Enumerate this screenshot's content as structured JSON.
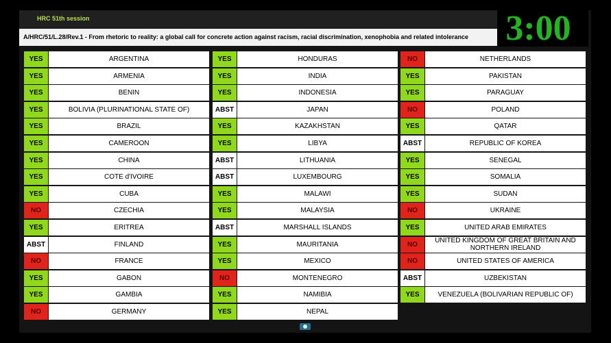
{
  "header": {
    "session": "HRC 51th session",
    "resolution": "A/HRC/51/L.28/Rev.1 - From rhetoric to reality: a global call for concrete action against racism, racial discrimination, xenophobia and related intolerance",
    "timer": "3:00"
  },
  "vote_colors": {
    "YES": "#8fd81e",
    "NO": "#e0231b",
    "ABST": "#ffffff"
  },
  "columns": [
    [
      {
        "vote": "YES",
        "country": "ARGENTINA"
      },
      {
        "vote": "YES",
        "country": "ARMENIA"
      },
      {
        "vote": "YES",
        "country": "BENIN"
      },
      {
        "vote": "YES",
        "country": "BOLIVIA (PLURINATIONAL STATE OF)"
      },
      {
        "vote": "YES",
        "country": "BRAZIL"
      },
      {
        "vote": "YES",
        "country": "CAMEROON"
      },
      {
        "vote": "YES",
        "country": "CHINA"
      },
      {
        "vote": "YES",
        "country": "COTE d'IVOIRE"
      },
      {
        "vote": "YES",
        "country": "CUBA"
      },
      {
        "vote": "NO",
        "country": "CZECHIA"
      },
      {
        "vote": "YES",
        "country": "ERITREA"
      },
      {
        "vote": "ABST",
        "country": "FINLAND"
      },
      {
        "vote": "NO",
        "country": "FRANCE"
      },
      {
        "vote": "YES",
        "country": "GABON"
      },
      {
        "vote": "YES",
        "country": "GAMBIA"
      },
      {
        "vote": "NO",
        "country": "GERMANY"
      }
    ],
    [
      {
        "vote": "YES",
        "country": "HONDURAS"
      },
      {
        "vote": "YES",
        "country": "INDIA"
      },
      {
        "vote": "YES",
        "country": "INDONESIA"
      },
      {
        "vote": "ABST",
        "country": "JAPAN"
      },
      {
        "vote": "YES",
        "country": "KAZAKHSTAN"
      },
      {
        "vote": "YES",
        "country": "LIBYA"
      },
      {
        "vote": "ABST",
        "country": "LITHUANIA"
      },
      {
        "vote": "ABST",
        "country": "LUXEMBOURG"
      },
      {
        "vote": "YES",
        "country": "MALAWI"
      },
      {
        "vote": "YES",
        "country": "MALAYSIA"
      },
      {
        "vote": "ABST",
        "country": "MARSHALL ISLANDS"
      },
      {
        "vote": "YES",
        "country": "MAURITANIA"
      },
      {
        "vote": "YES",
        "country": "MEXICO"
      },
      {
        "vote": "NO",
        "country": "MONTENEGRO"
      },
      {
        "vote": "YES",
        "country": "NAMIBIA"
      },
      {
        "vote": "YES",
        "country": "NEPAL"
      }
    ],
    [
      {
        "vote": "NO",
        "country": "NETHERLANDS"
      },
      {
        "vote": "YES",
        "country": "PAKISTAN"
      },
      {
        "vote": "YES",
        "country": "PARAGUAY"
      },
      {
        "vote": "NO",
        "country": "POLAND"
      },
      {
        "vote": "YES",
        "country": "QATAR"
      },
      {
        "vote": "ABST",
        "country": "REPUBLIC OF KOREA"
      },
      {
        "vote": "YES",
        "country": "SENEGAL"
      },
      {
        "vote": "YES",
        "country": "SOMALIA"
      },
      {
        "vote": "YES",
        "country": "SUDAN"
      },
      {
        "vote": "NO",
        "country": "UKRAINE"
      },
      {
        "vote": "YES",
        "country": "UNITED ARAB EMIRATES"
      },
      {
        "vote": "NO",
        "country": "UNITED KINGDOM OF GREAT BRITAIN AND NORTHERN IRELAND"
      },
      {
        "vote": "NO",
        "country": "UNITED STATES OF AMERICA"
      },
      {
        "vote": "ABST",
        "country": "UZBEKISTAN"
      },
      {
        "vote": "YES",
        "country": "VENEZUELA (BOLIVARIAN REPUBLIC OF)"
      }
    ]
  ]
}
